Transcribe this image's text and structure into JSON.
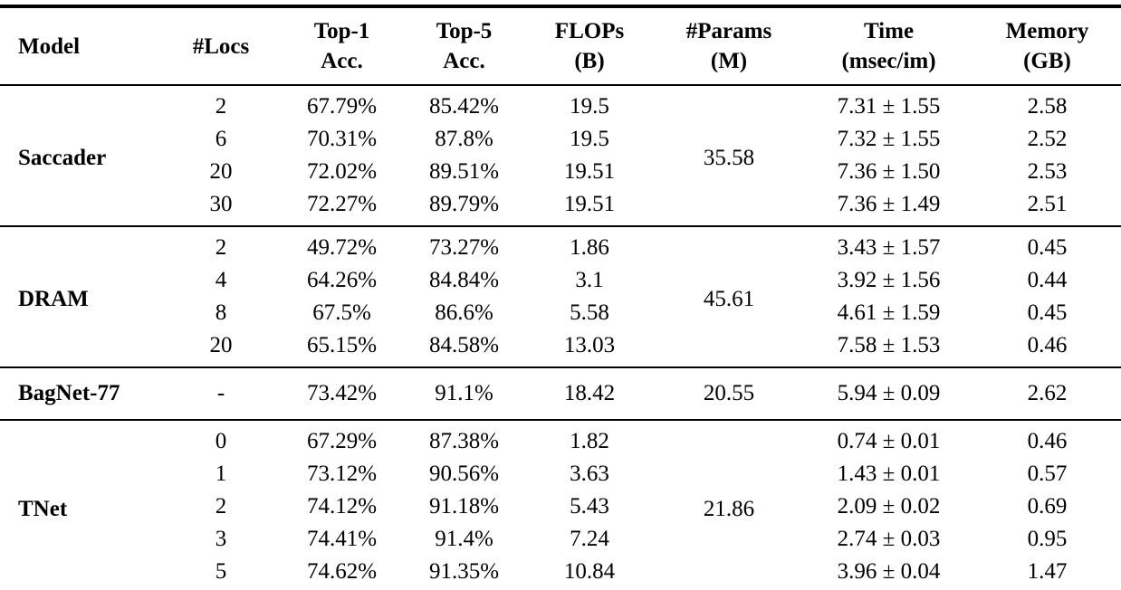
{
  "table": {
    "colors": {
      "text": "#000000",
      "background": "#ffffff",
      "rule": "#000000"
    },
    "columns": [
      {
        "key": "model",
        "label": "Model",
        "sub": ""
      },
      {
        "key": "locs",
        "label": "#Locs",
        "sub": ""
      },
      {
        "key": "top1",
        "label": "Top-1",
        "sub": "Acc."
      },
      {
        "key": "top5",
        "label": "Top-5",
        "sub": "Acc."
      },
      {
        "key": "flops",
        "label": "FLOPs",
        "sub": "(B)"
      },
      {
        "key": "params",
        "label": "#Params",
        "sub": "(M)"
      },
      {
        "key": "time",
        "label": "Time",
        "sub": "(msec/im)"
      },
      {
        "key": "memory",
        "label": "Memory",
        "sub": "(GB)"
      }
    ],
    "groups": [
      {
        "model": "Saccader",
        "params": "35.58",
        "rows": [
          {
            "locs": "2",
            "top1": "67.79%",
            "top5": "85.42%",
            "flops": "19.5",
            "time": "7.31 ± 1.55",
            "memory": "2.58"
          },
          {
            "locs": "6",
            "top1": "70.31%",
            "top5": "87.8%",
            "flops": "19.5",
            "time": "7.32 ± 1.55",
            "memory": "2.52"
          },
          {
            "locs": "20",
            "top1": "72.02%",
            "top5": "89.51%",
            "flops": "19.51",
            "time": "7.36 ± 1.50",
            "memory": "2.53"
          },
          {
            "locs": "30",
            "top1": "72.27%",
            "top5": "89.79%",
            "flops": "19.51",
            "time": "7.36 ± 1.49",
            "memory": "2.51"
          }
        ]
      },
      {
        "model": "DRAM",
        "params": "45.61",
        "rows": [
          {
            "locs": "2",
            "top1": "49.72%",
            "top5": "73.27%",
            "flops": "1.86",
            "time": "3.43 ± 1.57",
            "memory": "0.45"
          },
          {
            "locs": "4",
            "top1": "64.26%",
            "top5": "84.84%",
            "flops": "3.1",
            "time": "3.92 ± 1.56",
            "memory": "0.44"
          },
          {
            "locs": "8",
            "top1": "67.5%",
            "top5": "86.6%",
            "flops": "5.58",
            "time": "4.61 ± 1.59",
            "memory": "0.45"
          },
          {
            "locs": "20",
            "top1": "65.15%",
            "top5": "84.58%",
            "flops": "13.03",
            "time": "7.58 ± 1.53",
            "memory": "0.46"
          }
        ]
      },
      {
        "model": "BagNet-77",
        "params": "20.55",
        "rows": [
          {
            "locs": "-",
            "top1": "73.42%",
            "top5": "91.1%",
            "flops": "18.42",
            "time": "5.94 ± 0.09",
            "memory": "2.62"
          }
        ]
      },
      {
        "model": "TNet",
        "params": "21.86",
        "rows": [
          {
            "locs": "0",
            "top1": "67.29%",
            "top5": "87.38%",
            "flops": "1.82",
            "time": "0.74 ± 0.01",
            "memory": "0.46"
          },
          {
            "locs": "1",
            "top1": "73.12%",
            "top5": "90.56%",
            "flops": "3.63",
            "time": "1.43 ± 0.01",
            "memory": "0.57"
          },
          {
            "locs": "2",
            "top1": "74.12%",
            "top5": "91.18%",
            "flops": "5.43",
            "time": "2.09 ± 0.02",
            "memory": "0.69"
          },
          {
            "locs": "3",
            "top1": "74.41%",
            "top5": "91.4%",
            "flops": "7.24",
            "time": "2.74 ± 0.03",
            "memory": "0.95"
          },
          {
            "locs": "5",
            "top1": "74.62%",
            "top5": "91.35%",
            "flops": "10.84",
            "time": "3.96 ± 0.04",
            "memory": "1.47"
          }
        ]
      }
    ]
  }
}
